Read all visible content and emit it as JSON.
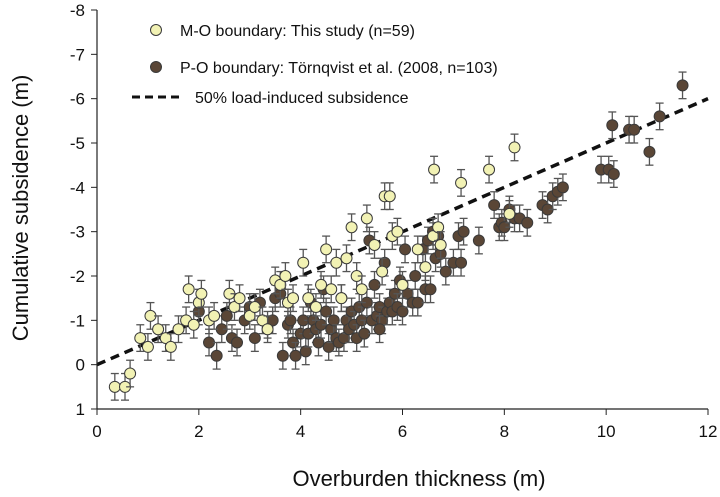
{
  "chart_data": {
    "type": "scatter",
    "xlabel": "Overburden thickness (m)",
    "ylabel": "Cumulative subsidence (m)",
    "xlim": [
      0,
      12
    ],
    "ylim": [
      1,
      -8
    ],
    "y_axis_inverted": true,
    "x_ticks": [
      0,
      2,
      4,
      6,
      8,
      10,
      12
    ],
    "y_ticks": [
      -8,
      -7,
      -6,
      -5,
      -4,
      -3,
      -2,
      -1,
      0,
      1
    ],
    "grid": false,
    "legend_position": "top-left",
    "error_bar": 0.3,
    "legend": [
      "M-O boundary: This study (n=59)",
      "P-O boundary: Törnqvist et al. (2008, n=103)",
      "50% load-induced subsidence"
    ],
    "colors": {
      "mo": "#f2f2b4",
      "po": "#5a4636",
      "edge": "#3a3a3a",
      "error": "#555555",
      "line": "#111111"
    },
    "series": [
      {
        "name": "M-O boundary: This study (n=59)",
        "marker": "circle",
        "points": [
          [
            0.35,
            0.5
          ],
          [
            0.55,
            0.5
          ],
          [
            0.65,
            0.2
          ],
          [
            0.85,
            -0.6
          ],
          [
            1.0,
            -0.4
          ],
          [
            1.05,
            -1.1
          ],
          [
            1.2,
            -0.8
          ],
          [
            1.35,
            -0.6
          ],
          [
            1.45,
            -0.4
          ],
          [
            1.6,
            -0.8
          ],
          [
            1.75,
            -1.0
          ],
          [
            1.8,
            -1.7
          ],
          [
            1.9,
            -0.9
          ],
          [
            2.0,
            -1.4
          ],
          [
            2.05,
            -1.6
          ],
          [
            2.2,
            -1.0
          ],
          [
            2.3,
            -1.1
          ],
          [
            2.6,
            -1.6
          ],
          [
            2.7,
            -1.3
          ],
          [
            2.8,
            -1.5
          ],
          [
            3.0,
            -1.1
          ],
          [
            3.1,
            -1.3
          ],
          [
            3.25,
            -1.0
          ],
          [
            3.35,
            -0.8
          ],
          [
            3.5,
            -1.9
          ],
          [
            3.6,
            -1.8
          ],
          [
            3.7,
            -2.0
          ],
          [
            3.75,
            -1.4
          ],
          [
            3.85,
            -1.5
          ],
          [
            4.05,
            -2.3
          ],
          [
            4.15,
            -1.5
          ],
          [
            4.3,
            -1.3
          ],
          [
            4.4,
            -1.8
          ],
          [
            4.5,
            -2.6
          ],
          [
            4.6,
            -1.7
          ],
          [
            4.7,
            -2.3
          ],
          [
            4.8,
            -1.5
          ],
          [
            4.9,
            -2.4
          ],
          [
            5.0,
            -3.1
          ],
          [
            5.1,
            -2.0
          ],
          [
            5.2,
            -1.7
          ],
          [
            5.3,
            -3.3
          ],
          [
            5.45,
            -2.7
          ],
          [
            5.6,
            -2.1
          ],
          [
            5.65,
            -3.8
          ],
          [
            5.75,
            -3.8
          ],
          [
            5.8,
            -2.9
          ],
          [
            5.9,
            -3.0
          ],
          [
            6.0,
            -1.8
          ],
          [
            6.3,
            -2.6
          ],
          [
            6.45,
            -2.2
          ],
          [
            6.6,
            -2.9
          ],
          [
            6.62,
            -4.4
          ],
          [
            6.7,
            -3.1
          ],
          [
            6.75,
            -2.7
          ],
          [
            7.15,
            -4.1
          ],
          [
            7.7,
            -4.4
          ],
          [
            8.1,
            -3.4
          ],
          [
            8.2,
            -4.9
          ]
        ]
      },
      {
        "name": "P-O boundary: Törnqvist et al. (2008, n=103)",
        "marker": "circle",
        "points": [
          [
            2.2,
            -0.5
          ],
          [
            2.35,
            -0.2
          ],
          [
            2.45,
            -0.8
          ],
          [
            2.55,
            -1.1
          ],
          [
            2.65,
            -0.6
          ],
          [
            2.75,
            -0.5
          ],
          [
            2.9,
            -1.0
          ],
          [
            3.0,
            -1.3
          ],
          [
            3.2,
            -1.4
          ],
          [
            3.35,
            -0.9
          ],
          [
            3.45,
            -1.0
          ],
          [
            3.5,
            -1.5
          ],
          [
            3.6,
            -1.6
          ],
          [
            3.65,
            -0.2
          ],
          [
            3.75,
            -0.9
          ],
          [
            3.8,
            -1.0
          ],
          [
            3.85,
            -0.5
          ],
          [
            3.9,
            -0.2
          ],
          [
            4.0,
            -0.7
          ],
          [
            4.05,
            -1.0
          ],
          [
            4.1,
            -0.3
          ],
          [
            4.15,
            -0.7
          ],
          [
            4.2,
            -1.4
          ],
          [
            4.25,
            -1.0
          ],
          [
            4.3,
            -0.8
          ],
          [
            4.35,
            -0.5
          ],
          [
            4.4,
            -0.9
          ],
          [
            4.5,
            -1.2
          ],
          [
            4.55,
            -0.4
          ],
          [
            4.6,
            -0.8
          ],
          [
            4.65,
            -1.0
          ],
          [
            4.7,
            -0.6
          ],
          [
            4.75,
            -0.5
          ],
          [
            4.8,
            -1.5
          ],
          [
            4.85,
            -0.6
          ],
          [
            4.9,
            -1.0
          ],
          [
            4.95,
            -0.8
          ],
          [
            5.0,
            -1.2
          ],
          [
            5.05,
            -0.9
          ],
          [
            5.1,
            -0.6
          ],
          [
            5.15,
            -1.3
          ],
          [
            5.2,
            -1.0
          ],
          [
            5.25,
            -0.7
          ],
          [
            5.3,
            -1.4
          ],
          [
            5.35,
            -2.8
          ],
          [
            5.4,
            -1.0
          ],
          [
            5.45,
            -1.8
          ],
          [
            5.5,
            -1.1
          ],
          [
            5.55,
            -1.3
          ],
          [
            5.6,
            -1.0
          ],
          [
            5.65,
            -2.3
          ],
          [
            5.7,
            -1.2
          ],
          [
            5.75,
            -1.4
          ],
          [
            5.8,
            -1.2
          ],
          [
            5.85,
            -1.6
          ],
          [
            5.9,
            -1.3
          ],
          [
            5.95,
            -1.9
          ],
          [
            6.0,
            -1.2
          ],
          [
            6.05,
            -2.6
          ],
          [
            6.1,
            -1.6
          ],
          [
            6.2,
            -1.4
          ],
          [
            6.3,
            -1.4
          ],
          [
            6.4,
            -2.6
          ],
          [
            6.45,
            -1.7
          ],
          [
            6.5,
            -2.8
          ],
          [
            6.55,
            -1.7
          ],
          [
            6.6,
            -3.0
          ],
          [
            6.65,
            -2.4
          ],
          [
            6.7,
            -2.9
          ],
          [
            6.75,
            -2.5
          ],
          [
            6.85,
            -2.1
          ],
          [
            7.0,
            -2.3
          ],
          [
            7.1,
            -2.9
          ],
          [
            7.15,
            -2.3
          ],
          [
            7.2,
            -3.0
          ],
          [
            7.5,
            -2.8
          ],
          [
            7.8,
            -3.6
          ],
          [
            7.9,
            -3.1
          ],
          [
            7.95,
            -3.2
          ],
          [
            8.0,
            -3.1
          ],
          [
            8.1,
            -3.5
          ],
          [
            8.2,
            -3.3
          ],
          [
            8.3,
            -3.3
          ],
          [
            8.45,
            -3.2
          ],
          [
            8.75,
            -3.6
          ],
          [
            8.85,
            -3.5
          ],
          [
            8.95,
            -3.8
          ],
          [
            9.05,
            -3.9
          ],
          [
            9.15,
            -4.0
          ],
          [
            9.9,
            -4.4
          ],
          [
            10.05,
            -4.4
          ],
          [
            10.15,
            -4.3
          ],
          [
            10.12,
            -5.4
          ],
          [
            10.45,
            -5.3
          ],
          [
            10.55,
            -5.3
          ],
          [
            10.85,
            -4.8
          ],
          [
            11.05,
            -5.6
          ],
          [
            11.5,
            -6.3
          ],
          [
            2.0,
            -1.2
          ],
          [
            3.1,
            -0.6
          ],
          [
            4.45,
            -1.7
          ],
          [
            5.55,
            -0.8
          ],
          [
            6.25,
            -2.0
          ]
        ]
      },
      {
        "name": "50% load-induced subsidence",
        "type": "line",
        "style": "dashed",
        "x": [
          0,
          12
        ],
        "y": [
          0,
          -6
        ]
      }
    ]
  }
}
